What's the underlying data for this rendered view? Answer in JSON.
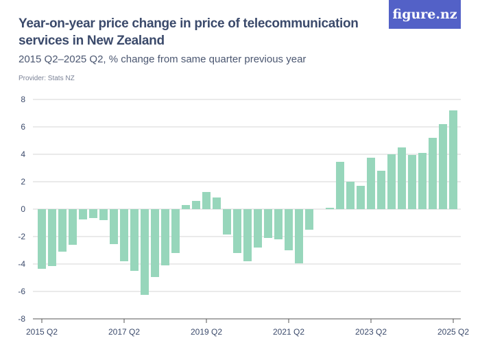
{
  "header": {
    "title": "Year-on-year price change in price of telecommunication services in New Zealand",
    "subtitle": "2015 Q2–2025 Q2, % change from same quarter previous year",
    "provider": "Provider: Stats NZ",
    "logo_text": "figure.nz",
    "logo_color": "#5361c7"
  },
  "chart_data": {
    "type": "bar",
    "title": "Year-on-year price change in price of telecommunication services in New Zealand",
    "subtitle": "2015 Q2–2025 Q2, % change from same quarter previous year",
    "xlabel": "",
    "ylabel": "",
    "ylim": [
      -8,
      8
    ],
    "yticks": [
      8,
      6,
      4,
      2,
      0,
      -2,
      -4,
      -6,
      -8
    ],
    "xtick_labels": [
      "2015 Q2",
      "2017 Q2",
      "2019 Q2",
      "2021 Q2",
      "2023 Q2",
      "2025 Q2"
    ],
    "grid": true,
    "bar_color": "#97d6bb",
    "categories": [
      "2015 Q2",
      "2015 Q3",
      "2015 Q4",
      "2016 Q1",
      "2016 Q2",
      "2016 Q3",
      "2016 Q4",
      "2017 Q1",
      "2017 Q2",
      "2017 Q3",
      "2017 Q4",
      "2018 Q1",
      "2018 Q2",
      "2018 Q3",
      "2018 Q4",
      "2019 Q1",
      "2019 Q2",
      "2019 Q3",
      "2019 Q4",
      "2020 Q1",
      "2020 Q2",
      "2020 Q3",
      "2020 Q4",
      "2021 Q1",
      "2021 Q2",
      "2021 Q3",
      "2021 Q4",
      "2022 Q1",
      "2022 Q2",
      "2022 Q3",
      "2022 Q4",
      "2023 Q1",
      "2023 Q2",
      "2023 Q3",
      "2023 Q4",
      "2024 Q1",
      "2024 Q2",
      "2024 Q3",
      "2024 Q4",
      "2025 Q1",
      "2025 Q2"
    ],
    "values": [
      -4.35,
      -4.15,
      -3.1,
      -2.6,
      -0.75,
      -0.65,
      -0.8,
      -2.55,
      -3.8,
      -4.5,
      -6.25,
      -4.95,
      -4.1,
      -3.2,
      0.3,
      0.6,
      1.25,
      0.85,
      -1.85,
      -3.2,
      -3.8,
      -2.8,
      -2.1,
      -2.2,
      -3.0,
      -3.95,
      -1.5,
      null,
      0.1,
      3.45,
      2.0,
      1.7,
      3.75,
      2.8,
      4.0,
      4.5,
      3.95,
      4.1,
      5.2,
      6.2,
      7.2
    ]
  }
}
